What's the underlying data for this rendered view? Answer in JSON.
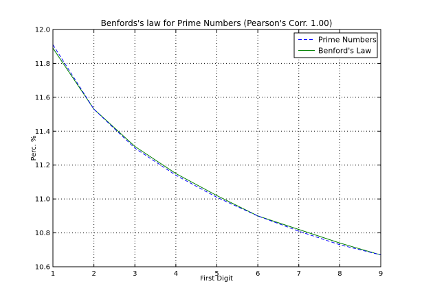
{
  "chart_data": {
    "type": "line",
    "title": "Benfords's law for Prime Numbers (Pearson's Corr. 1.00)",
    "xlabel": "First Digit",
    "ylabel": "Perc. %",
    "x": [
      1,
      2,
      3,
      4,
      5,
      6,
      7,
      8,
      9
    ],
    "xlim": [
      1,
      9
    ],
    "ylim": [
      10.6,
      12.0
    ],
    "xticks": [
      "1",
      "2",
      "3",
      "4",
      "5",
      "6",
      "7",
      "8",
      "9"
    ],
    "yticks": [
      "10.6",
      "10.8",
      "11.0",
      "11.2",
      "11.4",
      "11.6",
      "11.8",
      "12.0"
    ],
    "grid": true,
    "legend_position": "top-right",
    "series": [
      {
        "name": "Prime Numbers",
        "style": "dashed",
        "color": "#0000ff",
        "values": [
          11.91,
          11.53,
          11.3,
          11.14,
          11.01,
          10.9,
          10.81,
          10.73,
          10.67
        ]
      },
      {
        "name": "Benford's Law",
        "style": "solid",
        "color": "#008000",
        "values": [
          11.89,
          11.53,
          11.31,
          11.15,
          11.02,
          10.9,
          10.82,
          10.74,
          10.67
        ]
      }
    ]
  }
}
